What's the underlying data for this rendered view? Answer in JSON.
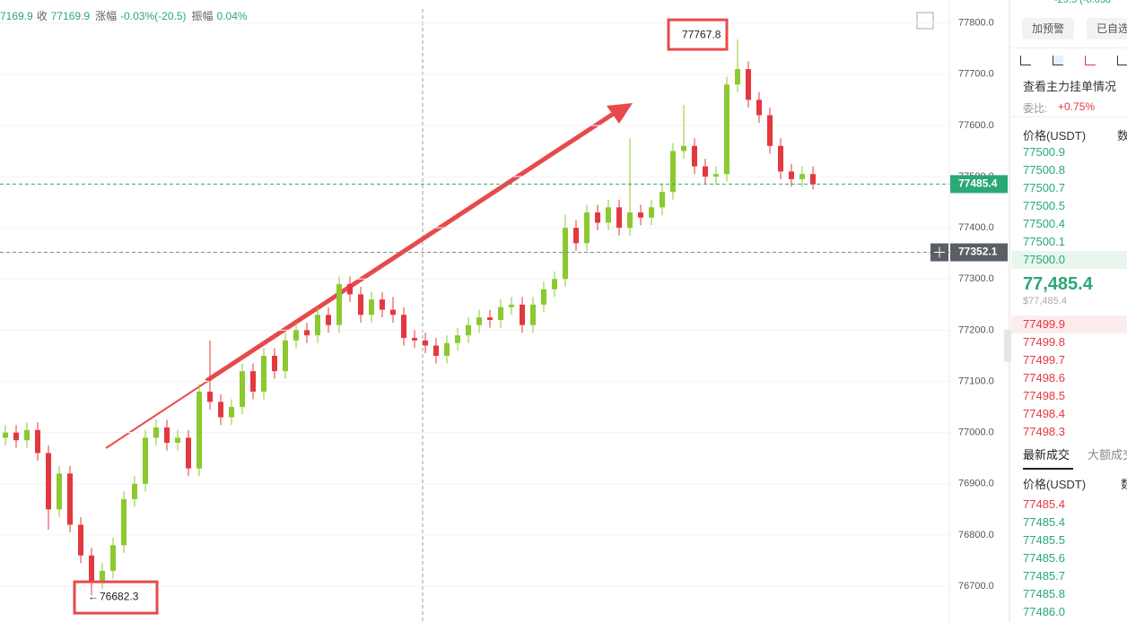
{
  "info": {
    "open": "7169.9",
    "close_label": "收",
    "close": "77169.9",
    "change_label": "涨幅",
    "change": "-0.03%(-20.5)",
    "amp_label": "振幅",
    "amp": "0.04%"
  },
  "chart_data": {
    "type": "candlestick",
    "up_color": "#8bc92f",
    "down_color": "#e5373e",
    "ylim": [
      76630,
      77845
    ],
    "yticks": [
      {
        "value": 76700,
        "label": "76700.0"
      },
      {
        "value": 76800,
        "label": "76800.0"
      },
      {
        "value": 76900,
        "label": "76900.0"
      },
      {
        "value": 77000,
        "label": "77000.0"
      },
      {
        "value": 77100,
        "label": "77100.0"
      },
      {
        "value": 77200,
        "label": "77200.0"
      },
      {
        "value": 77300,
        "label": "77300.0"
      },
      {
        "value": 77400,
        "label": "77400.0"
      },
      {
        "value": 77500,
        "label": "77500.0"
      },
      {
        "value": 77600,
        "label": "77600.0"
      },
      {
        "value": 77700,
        "label": "77700.0"
      },
      {
        "value": 77800,
        "label": "77800.0"
      }
    ],
    "grid": true,
    "last_price": 77485.4,
    "crosshair_price": 77352.1,
    "high_label": 77767.8,
    "low_label": 76682.3,
    "ohlc": [
      [
        76990,
        77015,
        76975,
        77000
      ],
      [
        77000,
        77015,
        76970,
        76985
      ],
      [
        76985,
        77020,
        76970,
        77005
      ],
      [
        77005,
        77020,
        76945,
        76960
      ],
      [
        76960,
        76975,
        76810,
        76850
      ],
      [
        76850,
        76935,
        76835,
        76920
      ],
      [
        76920,
        76935,
        76805,
        76820
      ],
      [
        76820,
        76835,
        76745,
        76760
      ],
      [
        76760,
        76775,
        76682.3,
        76710
      ],
      [
        76710,
        76745,
        76695,
        76730
      ],
      [
        76730,
        76795,
        76715,
        76780
      ],
      [
        76780,
        76885,
        76765,
        76870
      ],
      [
        76870,
        76915,
        76855,
        76900
      ],
      [
        76900,
        77005,
        76885,
        76990
      ],
      [
        76990,
        77025,
        76975,
        77010
      ],
      [
        77010,
        77025,
        76965,
        76980
      ],
      [
        76980,
        77005,
        76965,
        76990
      ],
      [
        76990,
        77005,
        76915,
        76930
      ],
      [
        76930,
        77095,
        76915,
        77080
      ],
      [
        77080,
        77180,
        77045,
        77060
      ],
      [
        77060,
        77075,
        77015,
        77030
      ],
      [
        77030,
        77065,
        77015,
        77050
      ],
      [
        77050,
        77135,
        77035,
        77120
      ],
      [
        77120,
        77135,
        77065,
        77080
      ],
      [
        77080,
        77165,
        77065,
        77150
      ],
      [
        77150,
        77165,
        77105,
        77120
      ],
      [
        77120,
        77195,
        77105,
        77180
      ],
      [
        77180,
        77215,
        77165,
        77200
      ],
      [
        77200,
        77215,
        77175,
        77190
      ],
      [
        77190,
        77245,
        77175,
        77230
      ],
      [
        77230,
        77245,
        77195,
        77210
      ],
      [
        77210,
        77305,
        77195,
        77290
      ],
      [
        77290,
        77305,
        77255,
        77270
      ],
      [
        77270,
        77285,
        77215,
        77230
      ],
      [
        77230,
        77275,
        77215,
        77260
      ],
      [
        77260,
        77275,
        77225,
        77240
      ],
      [
        77240,
        77265,
        77215,
        77230
      ],
      [
        77230,
        77245,
        77170,
        77185
      ],
      [
        77185,
        77200,
        77165,
        77180
      ],
      [
        77180,
        77195,
        77155,
        77170
      ],
      [
        77170,
        77185,
        77135,
        77150
      ],
      [
        77150,
        77190,
        77135,
        77175
      ],
      [
        77175,
        77205,
        77160,
        77190
      ],
      [
        77190,
        77225,
        77175,
        77210
      ],
      [
        77210,
        77240,
        77195,
        77225
      ],
      [
        77225,
        77240,
        77205,
        77220
      ],
      [
        77220,
        77260,
        77205,
        77245
      ],
      [
        77245,
        77265,
        77230,
        77250
      ],
      [
        77250,
        77265,
        77195,
        77210
      ],
      [
        77210,
        77265,
        77195,
        77250
      ],
      [
        77250,
        77295,
        77235,
        77280
      ],
      [
        77280,
        77315,
        77265,
        77300
      ],
      [
        77300,
        77425,
        77285,
        77400
      ],
      [
        77400,
        77415,
        77355,
        77370
      ],
      [
        77370,
        77445,
        77355,
        77430
      ],
      [
        77430,
        77445,
        77395,
        77410
      ],
      [
        77410,
        77455,
        77395,
        77440
      ],
      [
        77440,
        77455,
        77385,
        77400
      ],
      [
        77400,
        77575,
        77385,
        77430
      ],
      [
        77430,
        77445,
        77405,
        77420
      ],
      [
        77420,
        77455,
        77405,
        77440
      ],
      [
        77440,
        77485,
        77425,
        77470
      ],
      [
        77470,
        77565,
        77455,
        77550
      ],
      [
        77550,
        77640,
        77535,
        77560
      ],
      [
        77560,
        77575,
        77505,
        77520
      ],
      [
        77520,
        77535,
        77485,
        77500
      ],
      [
        77500,
        77520,
        77485,
        77505
      ],
      [
        77505,
        77695,
        77490,
        77680
      ],
      [
        77680,
        77767.8,
        77665,
        77710
      ],
      [
        77710,
        77725,
        77635,
        77650
      ],
      [
        77650,
        77665,
        77605,
        77620
      ],
      [
        77620,
        77635,
        77545,
        77560
      ],
      [
        77560,
        77575,
        77495,
        77510
      ],
      [
        77510,
        77525,
        77480,
        77495
      ],
      [
        77495,
        77520,
        77480,
        77505
      ],
      [
        77505,
        77520,
        77475,
        77485
      ]
    ]
  },
  "sidebar": {
    "top_change": "-29.5 (-0.038",
    "buttons": [
      "加预警",
      "已自选"
    ],
    "orderbook_title": "查看主力挂单情况",
    "ratio_label": "委比:",
    "ratio": "+0.75%",
    "header": [
      "价格(USDT)",
      "数"
    ],
    "asks": [
      "77500.9",
      "77500.8",
      "77500.7",
      "77500.5",
      "77500.4",
      "77500.1",
      "77500.0"
    ],
    "price": "77,485.4",
    "price_usd": "$77,485.4",
    "bids": [
      "77499.9",
      "77499.8",
      "77499.7",
      "77498.6",
      "77498.5",
      "77498.4",
      "77498.3"
    ],
    "tabs": [
      "最新成交",
      "大额成交"
    ],
    "trades_header": [
      "价格(USDT)",
      "数"
    ],
    "trades": [
      "77485.4",
      "77485.4",
      "77485.5",
      "77485.6",
      "77485.7",
      "77485.8",
      "77486.0"
    ]
  }
}
